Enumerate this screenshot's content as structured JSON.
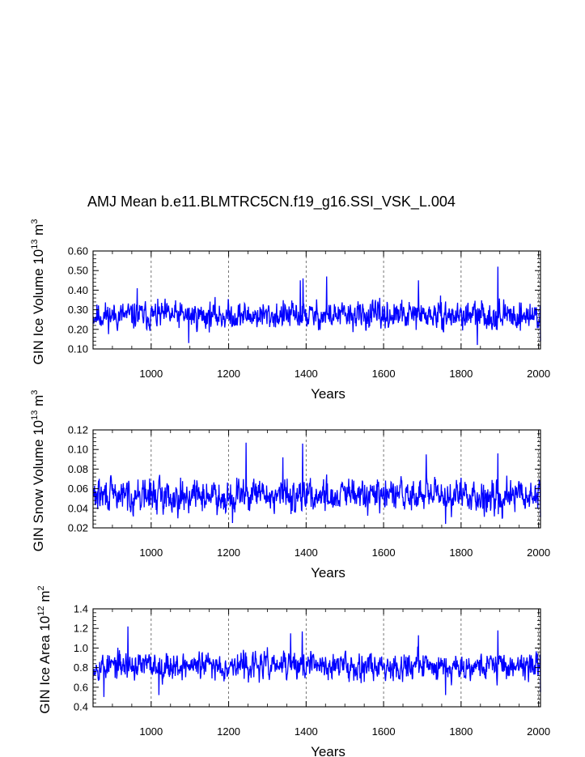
{
  "chart_data": {
    "type": "line",
    "title": "AMJ Mean b.e11.BLMTRC5CN.f19_g16.SSI_VSK_L.004",
    "line_color": "#0000ff",
    "grid_color": "#555555",
    "xlim": [
      850,
      2005
    ],
    "x_ticks": [
      1000,
      1200,
      1400,
      1600,
      1800,
      2000
    ],
    "x_tick_labels": [
      "1000",
      "1200",
      "1400",
      "1600",
      "1800",
      "2000"
    ],
    "panels": [
      {
        "xlabel": "Years",
        "ylabel_main": "GIN Ice Volume 10",
        "ylabel_exp": "13",
        "ylabel_unit": " m",
        "ylabel_unit_exp": "3",
        "ylim": [
          0.1,
          0.6
        ],
        "y_ticks": [
          0.1,
          0.2,
          0.3,
          0.4,
          0.5,
          0.6
        ],
        "y_tick_labels": [
          "0.10",
          "0.20",
          "0.30",
          "0.40",
          "0.50",
          "0.60"
        ],
        "series": {
          "name": "GIN Ice Volume",
          "mean": 0.27,
          "amp": 0.055,
          "seed": 11,
          "peaks": [
            [
              964,
              0.41
            ],
            [
              1385,
              0.45
            ],
            [
              1392,
              0.46
            ],
            [
              1453,
              0.47
            ],
            [
              1690,
              0.45
            ],
            [
              1895,
              0.52
            ],
            [
              1842,
              0.12
            ],
            [
              1097,
              0.13
            ]
          ],
          "end_value": 0.14
        }
      },
      {
        "xlabel": "Years",
        "ylabel_main": "GIN Snow Volume 10",
        "ylabel_exp": "13",
        "ylabel_unit": " m",
        "ylabel_unit_exp": "3",
        "ylim": [
          0.02,
          0.12
        ],
        "y_ticks": [
          0.02,
          0.04,
          0.06,
          0.08,
          0.1,
          0.12
        ],
        "y_tick_labels": [
          "0.02",
          "0.04",
          "0.06",
          "0.08",
          "0.10",
          "0.12"
        ],
        "series": {
          "name": "GIN Snow Volume",
          "mean": 0.053,
          "amp": 0.013,
          "seed": 29,
          "peaks": [
            [
              1245,
              0.107
            ],
            [
              1391,
              0.106
            ],
            [
              1340,
              0.092
            ],
            [
              1710,
              0.095
            ],
            [
              1895,
              0.096
            ],
            [
              1760,
              0.024
            ],
            [
              1210,
              0.025
            ]
          ],
          "end_value": 0.031
        }
      },
      {
        "xlabel": "Years",
        "ylabel_main": "GIN Ice Area 10",
        "ylabel_exp": "12",
        "ylabel_unit": " m",
        "ylabel_unit_exp": "2",
        "ylim": [
          0.4,
          1.4
        ],
        "y_ticks": [
          0.4,
          0.6,
          0.8,
          1.0,
          1.2,
          1.4
        ],
        "y_tick_labels": [
          "0.4",
          "0.6",
          "0.8",
          "1.0",
          "1.2",
          "1.4"
        ],
        "series": {
          "name": "GIN Ice Area",
          "mean": 0.82,
          "amp": 0.11,
          "seed": 53,
          "peaks": [
            [
              940,
              1.22
            ],
            [
              1390,
              1.17
            ],
            [
              1360,
              1.15
            ],
            [
              1690,
              1.13
            ],
            [
              1895,
              1.18
            ],
            [
              1020,
              0.52
            ],
            [
              878,
              0.5
            ],
            [
              1760,
              0.52
            ]
          ],
          "end_value": 0.55
        }
      }
    ]
  }
}
